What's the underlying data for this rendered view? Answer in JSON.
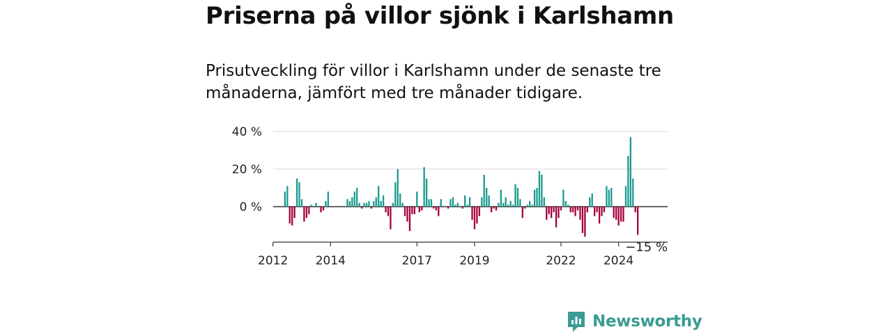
{
  "chart_data": {
    "type": "bar",
    "title": "Priserna på villor sjönk i Karlshamn",
    "subtitle": "Prisutveckling för villor i Karlshamn under de senaste tre månaderna, jämfört med tre månader tidigare.",
    "ylim": [
      -18,
      40
    ],
    "yticks": [
      {
        "value": 0,
        "label": "0 %"
      },
      {
        "value": 20,
        "label": "20 %"
      },
      {
        "value": 40,
        "label": "40 %"
      }
    ],
    "xticks": [
      {
        "value": 2012,
        "label": "2012"
      },
      {
        "value": 2014,
        "label": "2014"
      },
      {
        "value": 2017,
        "label": "2017"
      },
      {
        "value": 2019,
        "label": "2019"
      },
      {
        "value": 2022,
        "label": "2022"
      },
      {
        "value": 2024,
        "label": "2024"
      }
    ],
    "positive_color": "#1a9a8f",
    "negative_color": "#a3003d",
    "last_label": "−15 %",
    "x": [
      "2012-06",
      "2012-07",
      "2012-08",
      "2012-09",
      "2012-10",
      "2012-11",
      "2012-12",
      "2013-01",
      "2013-02",
      "2013-03",
      "2013-04",
      "2013-05",
      "2013-06",
      "2013-07",
      "2013-08",
      "2013-09",
      "2013-10",
      "2013-11",
      "2013-12",
      "2014-01",
      "2014-02",
      "2014-03",
      "2014-04",
      "2014-05",
      "2014-06",
      "2014-07",
      "2014-08",
      "2014-09",
      "2014-10",
      "2014-11",
      "2014-12",
      "2015-01",
      "2015-02",
      "2015-03",
      "2015-04",
      "2015-05",
      "2015-06",
      "2015-07",
      "2015-08",
      "2015-09",
      "2015-10",
      "2015-11",
      "2015-12",
      "2016-01",
      "2016-02",
      "2016-03",
      "2016-04",
      "2016-05",
      "2016-06",
      "2016-07",
      "2016-08",
      "2016-09",
      "2016-10",
      "2016-11",
      "2016-12",
      "2017-01",
      "2017-02",
      "2017-03",
      "2017-04",
      "2017-05",
      "2017-06",
      "2017-07",
      "2017-08",
      "2017-09",
      "2017-10",
      "2017-11",
      "2017-12",
      "2018-01",
      "2018-02",
      "2018-03",
      "2018-04",
      "2018-05",
      "2018-06",
      "2018-07",
      "2018-08",
      "2018-09",
      "2018-10",
      "2018-11",
      "2018-12",
      "2019-01",
      "2019-02",
      "2019-03",
      "2019-04",
      "2019-05",
      "2019-06",
      "2019-07",
      "2019-08",
      "2019-09",
      "2019-10",
      "2019-11",
      "2019-12",
      "2020-01",
      "2020-02",
      "2020-03",
      "2020-04",
      "2020-05",
      "2020-06",
      "2020-07",
      "2020-08",
      "2020-09",
      "2020-10",
      "2020-11",
      "2020-12",
      "2021-01",
      "2021-02",
      "2021-03",
      "2021-04",
      "2021-05",
      "2021-06",
      "2021-07",
      "2021-08",
      "2021-09",
      "2021-10",
      "2021-11",
      "2021-12",
      "2022-01",
      "2022-02",
      "2022-03",
      "2022-04",
      "2022-05",
      "2022-06",
      "2022-07",
      "2022-08",
      "2022-09",
      "2022-10",
      "2022-11",
      "2022-12",
      "2023-01",
      "2023-02",
      "2023-03",
      "2023-04",
      "2023-05",
      "2023-06",
      "2023-07",
      "2023-08",
      "2023-09",
      "2023-10",
      "2023-11",
      "2023-12",
      "2024-01",
      "2024-02",
      "2024-03",
      "2024-04",
      "2024-05",
      "2024-06",
      "2024-07",
      "2024-08",
      "2024-09"
    ],
    "values": [
      8,
      11,
      -9,
      -10,
      -6,
      15,
      13,
      4,
      -8,
      -6,
      -4,
      1,
      0,
      2,
      0,
      -3,
      -2,
      3,
      8,
      null,
      null,
      null,
      null,
      null,
      null,
      null,
      4,
      3,
      5,
      8,
      10,
      2,
      -1,
      2,
      2,
      3,
      -1,
      3,
      5,
      11,
      3,
      6,
      -3,
      -5,
      -12,
      2,
      13,
      20,
      7,
      2,
      -5,
      -8,
      -13,
      -4,
      -4,
      8,
      -3,
      -2,
      21,
      15,
      4,
      4,
      -1,
      -2,
      -5,
      4,
      0,
      0,
      -1,
      4,
      5,
      1,
      2,
      0,
      -1,
      6,
      1,
      5,
      -7,
      -12,
      -9,
      -5,
      5,
      17,
      10,
      6,
      -3,
      -1,
      -2,
      2,
      9,
      2,
      5,
      1,
      3,
      1,
      12,
      10,
      4,
      -6,
      -1,
      1,
      3,
      1,
      9,
      10,
      19,
      17,
      5,
      -7,
      -4,
      -6,
      -3,
      -11,
      -6,
      -2,
      9,
      3,
      1,
      -3,
      -3,
      -5,
      -2,
      -7,
      -14,
      -16,
      -3,
      5,
      7,
      -5,
      -3,
      -9,
      -5,
      -3,
      11,
      9,
      10,
      -6,
      -7,
      -10,
      -8,
      -8,
      11,
      27,
      37,
      15,
      -3,
      -15
    ]
  },
  "brand": {
    "name": "Newsworthy",
    "color": "#3a9b93"
  }
}
